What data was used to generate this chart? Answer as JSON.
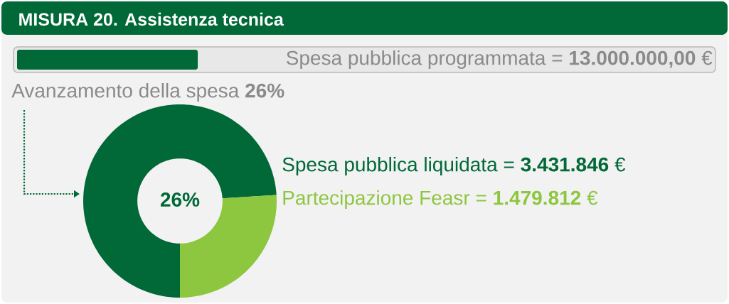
{
  "chart_data": {
    "type": "donut",
    "title": "MISURA 20. Assistenza tecnica",
    "categories": [
      null,
      null
    ],
    "values": [
      74,
      26
    ],
    "colors": [
      "#006937",
      "#8dc63f"
    ],
    "annotations": [
      "Spesa pubblica programmata = **13.000.000,00** €",
      "Avanzamento della spesa **26%**",
      "26%",
      "Spesa pubblica liquidata = **3.431.846** €",
      "Partecipazione Feasr = **1.479.812** €"
    ]
  }
}
